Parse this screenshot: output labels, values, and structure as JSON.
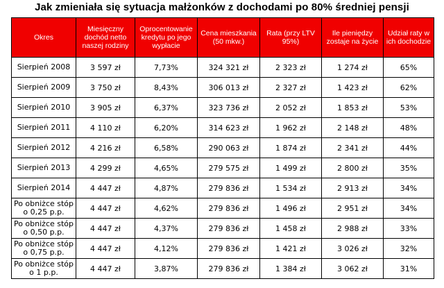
{
  "title": "Jak zmieniała się sytuacja małżonków z dochodami po 80% średniej pensji",
  "table": {
    "headers": [
      "Okres",
      "Miesięczny dochód netto naszej rodziny",
      "Oprocentowanie kredytu po jego wypłacie",
      "Cena mieszkania (50 mkw.)",
      "Rata (przy LTV 95%)",
      "Ile pieniędzy zostaje na życie",
      "Udział raty w ich dochodzie"
    ],
    "rows": [
      [
        "Sierpień 2008",
        "3 597 zł",
        "7,73%",
        "324 321 zł",
        "2 323 zł",
        "1 274 zł",
        "65%"
      ],
      [
        "Sierpień 2009",
        "3 750 zł",
        "8,43%",
        "306 013 zł",
        "2 327 zł",
        "1 423 zł",
        "62%"
      ],
      [
        "Sierpień 2010",
        "3 905 zł",
        "6,37%",
        "323 736 zł",
        "2 052 zł",
        "1 853 zł",
        "53%"
      ],
      [
        "Sierpień 2011",
        "4 110 zł",
        "6,20%",
        "314 623 zł",
        "1 962 zł",
        "2 148 zł",
        "48%"
      ],
      [
        "Sierpień 2012",
        "4 216 zł",
        "6,58%",
        "290 063 zł",
        "1 874 zł",
        "2 341 zł",
        "44%"
      ],
      [
        "Sierpień 2013",
        "4 299 zł",
        "4,65%",
        "279 575 zł",
        "1 499 zł",
        "2 800 zł",
        "35%"
      ],
      [
        "Sierpień 2014",
        "4 447 zł",
        "4,87%",
        "279 836 zł",
        "1 534 zł",
        "2 913 zł",
        "34%"
      ],
      [
        "Po obniżce stóp o 0,25 p.p.",
        "4 447 zł",
        "4,62%",
        "279 836 zł",
        "1 496 zł",
        "2 951 zł",
        "34%"
      ],
      [
        "Po obniżce stóp o 0,50 p.p.",
        "4 447 zł",
        "4,37%",
        "279 836 zł",
        "1 458 zł",
        "2 988 zł",
        "33%"
      ],
      [
        "Po obniżce stóp o 0,75 p.p.",
        "4 447 zł",
        "4,12%",
        "279 836 zł",
        "1 421 zł",
        "3 026 zł",
        "32%"
      ],
      [
        "Po obniżce stóp o 1 p.p.",
        "4 447 zł",
        "3,87%",
        "279 836 zł",
        "1 384 zł",
        "3 062 zł",
        "31%"
      ]
    ]
  }
}
